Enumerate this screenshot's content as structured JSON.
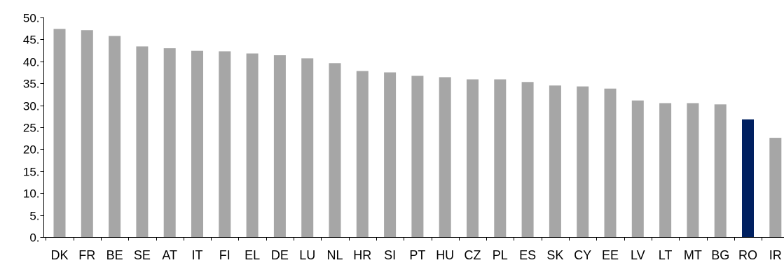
{
  "chart_data": {
    "type": "bar",
    "title": "",
    "xlabel": "",
    "ylabel": "",
    "ylim": [
      0,
      50
    ],
    "y_ticks": [
      "0.",
      "5.",
      "10.",
      "15.",
      "20.",
      "25.",
      "30.",
      "35.",
      "40.",
      "45.",
      "50."
    ],
    "grid": false,
    "legend": "none",
    "categories": [
      "DK",
      "FR",
      "BE",
      "SE",
      "AT",
      "IT",
      "FI",
      "EL",
      "DE",
      "LU",
      "NL",
      "HR",
      "SI",
      "PT",
      "HU",
      "CZ",
      "PL",
      "ES",
      "SK",
      "CY",
      "EE",
      "LV",
      "LT",
      "MT",
      "BG",
      "RO",
      "IR"
    ],
    "values": [
      47.4,
      47.1,
      45.8,
      43.4,
      43.0,
      42.4,
      42.3,
      41.8,
      41.4,
      40.7,
      39.6,
      37.8,
      37.5,
      36.7,
      36.4,
      35.9,
      35.9,
      35.3,
      34.5,
      34.3,
      33.8,
      31.1,
      30.5,
      30.5,
      30.2,
      26.8,
      22.6
    ],
    "colors": {
      "default": "#a6a6a6",
      "highlight": "#002060"
    },
    "highlight": [
      "RO"
    ]
  }
}
